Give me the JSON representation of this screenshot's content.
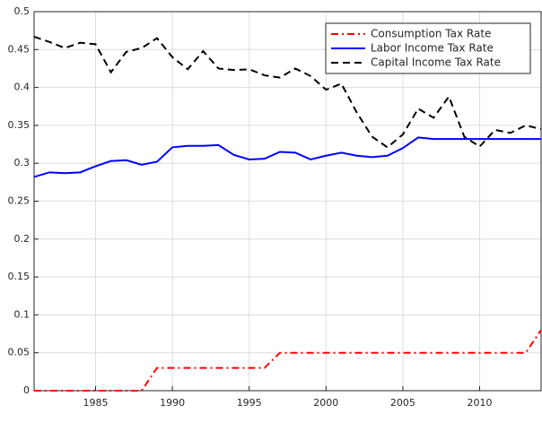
{
  "chart_data": {
    "type": "line",
    "x": [
      1981,
      1982,
      1983,
      1984,
      1985,
      1986,
      1987,
      1988,
      1989,
      1990,
      1991,
      1992,
      1993,
      1994,
      1995,
      1996,
      1997,
      1998,
      1999,
      2000,
      2001,
      2002,
      2003,
      2004,
      2005,
      2006,
      2007,
      2008,
      2009,
      2010,
      2011,
      2012,
      2013,
      2014
    ],
    "series": [
      {
        "name": "Consumption Tax Rate",
        "color": "#ff0000",
        "linestyle": "dashdot",
        "values": [
          0,
          0,
          0,
          0,
          0,
          0,
          0,
          0,
          0.03,
          0.03,
          0.03,
          0.03,
          0.03,
          0.03,
          0.03,
          0.03,
          0.05,
          0.05,
          0.05,
          0.05,
          0.05,
          0.05,
          0.05,
          0.05,
          0.05,
          0.05,
          0.05,
          0.05,
          0.05,
          0.05,
          0.05,
          0.05,
          0.05,
          0.08
        ]
      },
      {
        "name": "Labor Income Tax Rate",
        "color": "#0000ff",
        "linestyle": "solid",
        "values": [
          0.282,
          0.288,
          0.287,
          0.288,
          0.296,
          0.303,
          0.304,
          0.298,
          0.302,
          0.321,
          0.323,
          0.323,
          0.324,
          0.311,
          0.305,
          0.306,
          0.315,
          0.314,
          0.305,
          0.31,
          0.314,
          0.31,
          0.308,
          0.31,
          0.32,
          0.334,
          0.332,
          0.332,
          0.332,
          0.332,
          0.332,
          0.332,
          0.332,
          0.332
        ]
      },
      {
        "name": "Capital Income Tax Rate",
        "color": "#000000",
        "linestyle": "dashed",
        "values": [
          0.467,
          0.46,
          0.452,
          0.459,
          0.457,
          0.42,
          0.447,
          0.452,
          0.465,
          0.44,
          0.424,
          0.448,
          0.425,
          0.423,
          0.424,
          0.416,
          0.413,
          0.425,
          0.415,
          0.397,
          0.405,
          0.367,
          0.335,
          0.321,
          0.338,
          0.372,
          0.36,
          0.388,
          0.335,
          0.322,
          0.344,
          0.34,
          0.35,
          0.345
        ]
      }
    ],
    "xlim": [
      1981,
      2014
    ],
    "xticks": [
      1985,
      1990,
      1995,
      2000,
      2005,
      2010
    ],
    "ylim": [
      0,
      0.5
    ],
    "yticks": [
      0,
      0.05,
      0.1,
      0.15,
      0.2,
      0.25,
      0.3,
      0.35,
      0.4,
      0.45,
      0.5
    ],
    "grid": true,
    "legend": "northeast"
  }
}
